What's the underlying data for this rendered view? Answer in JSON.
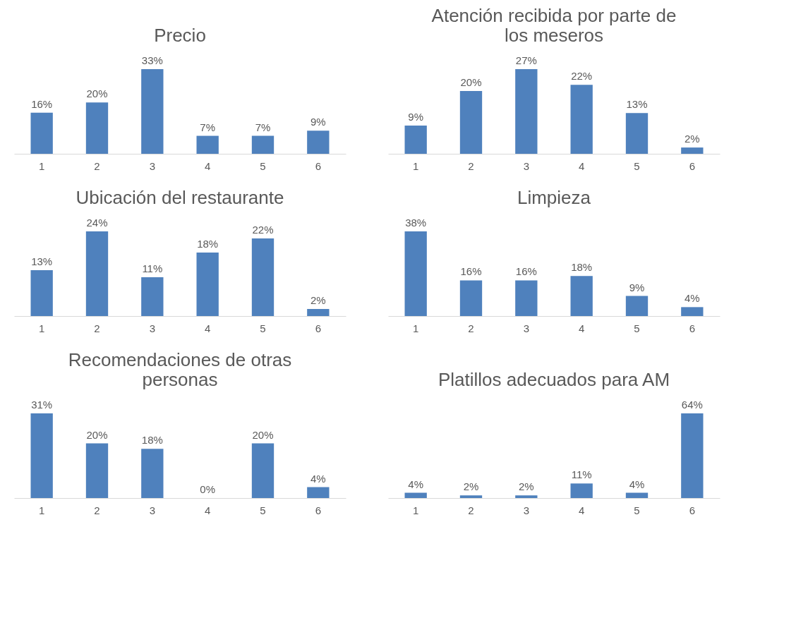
{
  "chart_data": [
    {
      "type": "bar",
      "title": "Precio",
      "categories": [
        "1",
        "2",
        "3",
        "4",
        "5",
        "6"
      ],
      "values": [
        16,
        20,
        33,
        7,
        7,
        9
      ],
      "value_labels": [
        "16%",
        "20%",
        "33%",
        "7%",
        "7%",
        "9%"
      ],
      "color": "#4f81bd"
    },
    {
      "type": "bar",
      "title": "Atención recibida por parte de los meseros",
      "categories": [
        "1",
        "2",
        "3",
        "4",
        "5",
        "6"
      ],
      "values": [
        9,
        20,
        27,
        22,
        13,
        2
      ],
      "value_labels": [
        "9%",
        "20%",
        "27%",
        "22%",
        "13%",
        "2%"
      ],
      "color": "#4f81bd"
    },
    {
      "type": "bar",
      "title": "Ubicación del restaurante",
      "categories": [
        "1",
        "2",
        "3",
        "4",
        "5",
        "6"
      ],
      "values": [
        13,
        24,
        11,
        18,
        22,
        2
      ],
      "value_labels": [
        "13%",
        "24%",
        "11%",
        "18%",
        "22%",
        "2%"
      ],
      "color": "#4f81bd"
    },
    {
      "type": "bar",
      "title": "Limpieza",
      "categories": [
        "1",
        "2",
        "3",
        "4",
        "5",
        "6"
      ],
      "values": [
        38,
        16,
        16,
        18,
        9,
        4
      ],
      "value_labels": [
        "38%",
        "16%",
        "16%",
        "18%",
        "9%",
        "4%"
      ],
      "color": "#4f81bd"
    },
    {
      "type": "bar",
      "title": "Recomendaciones de otras personas",
      "categories": [
        "1",
        "2",
        "3",
        "4",
        "5",
        "6"
      ],
      "values": [
        31,
        20,
        18,
        0,
        20,
        4
      ],
      "value_labels": [
        "31%",
        "20%",
        "18%",
        "0%",
        "20%",
        "4%"
      ],
      "color": "#4f81bd"
    },
    {
      "type": "bar",
      "title": "Platillos adecuados para AM",
      "categories": [
        "1",
        "2",
        "3",
        "4",
        "5",
        "6"
      ],
      "values": [
        4,
        2,
        2,
        11,
        4,
        64
      ],
      "value_labels": [
        "4%",
        "2%",
        "2%",
        "11%",
        "4%",
        "64%"
      ],
      "color": "#4f81bd"
    }
  ]
}
